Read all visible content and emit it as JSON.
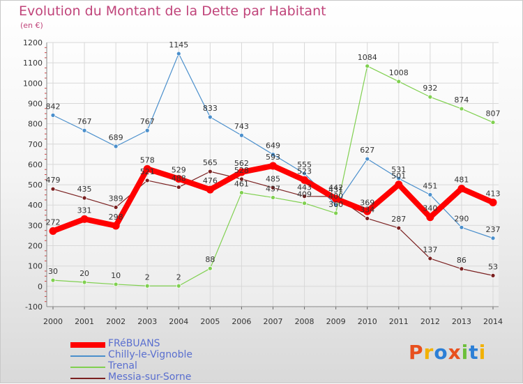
{
  "title": "Evolution du Montant de la Dette par Habitant",
  "unit": "(en €)",
  "logo": {
    "text": "Proxiti",
    "colors": [
      "#e8501e",
      "#f2b100",
      "#2c7fd6",
      "#e8501e",
      "#6cbf3a",
      "#2c7fd6",
      "#f2b100"
    ]
  },
  "chart_data": {
    "type": "line",
    "x": [
      "2000",
      "2001",
      "2002",
      "2003",
      "2004",
      "2005",
      "2006",
      "2007",
      "2008",
      "2009",
      "2010",
      "2011",
      "2012",
      "2013",
      "2014"
    ],
    "ylim": [
      -100,
      1200
    ],
    "yticks": [
      -100,
      0,
      100,
      200,
      300,
      400,
      500,
      600,
      700,
      800,
      900,
      1000,
      1100,
      1200
    ],
    "grid": true,
    "legend_position": "bottom-left",
    "series": [
      {
        "name": "FRéBUANS",
        "color": "#ff0000",
        "values": [
          272,
          331,
          298,
          578,
          529,
          476,
          562,
          593,
          523,
          431,
          369,
          501,
          340,
          481,
          413
        ],
        "labels": [
          "272",
          "331",
          "298",
          "578",
          "529",
          "476",
          "562",
          "593",
          "523",
          "431",
          "369",
          "501",
          "340",
          "481",
          "413"
        ]
      },
      {
        "name": "Chilly-le-Vignoble",
        "color": "#4a8fcc",
        "values": [
          842,
          767,
          689,
          767,
          1145,
          833,
          743,
          649,
          555,
          400,
          627,
          531,
          451,
          290,
          237
        ],
        "labels": [
          "842",
          "767",
          "689",
          "767",
          "1145",
          "833",
          "743",
          "649",
          "555",
          "400",
          "627",
          "531",
          "451",
          "290",
          "237"
        ]
      },
      {
        "name": "Trenal",
        "color": "#80d050",
        "values": [
          30,
          20,
          10,
          2,
          2,
          88,
          461,
          437,
          409,
          360,
          1084,
          1008,
          932,
          874,
          807
        ],
        "labels": [
          "30",
          "20",
          "10",
          "2",
          "2",
          "88",
          "461",
          "437",
          "409",
          "360",
          "1084",
          "1008",
          "932",
          "874",
          "807"
        ]
      },
      {
        "name": "Messia-sur-Sorne",
        "color": "#7a2020",
        "values": [
          479,
          435,
          389,
          521,
          488,
          565,
          528,
          485,
          443,
          442,
          334,
          287,
          137,
          86,
          53
        ],
        "labels": [
          "479",
          "435",
          "389",
          "521",
          "488",
          "565",
          "528",
          "485",
          "443",
          "442",
          "334",
          "287",
          "137",
          "86",
          "53"
        ]
      }
    ]
  }
}
